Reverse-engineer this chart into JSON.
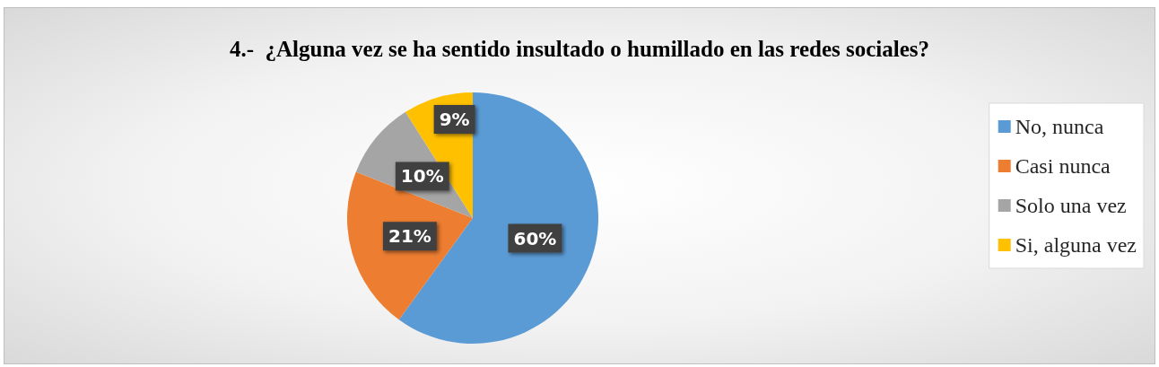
{
  "chart_data": {
    "type": "pie",
    "title": "4.-  ¿Alguna vez se ha sentido insultado o humillado en las redes sociales?",
    "categories": [
      "No, nunca",
      "Casi nunca",
      "Solo una vez",
      "Si, alguna vez"
    ],
    "values": [
      60,
      21,
      10,
      9
    ],
    "colors": [
      "#5b9bd5",
      "#ed7d31",
      "#a5a5a5",
      "#ffc000"
    ],
    "value_labels": [
      "60%",
      "21%",
      "10%",
      "9%"
    ],
    "legend": "right"
  }
}
